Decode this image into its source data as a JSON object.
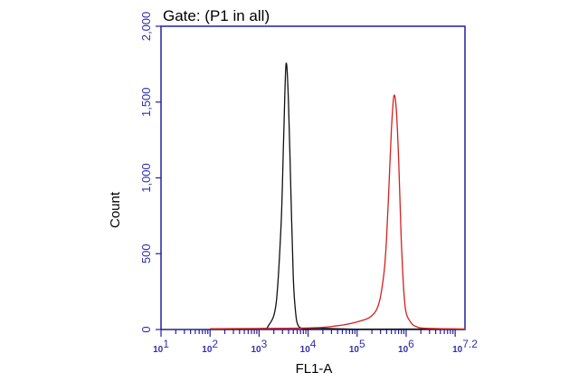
{
  "chart_data": {
    "type": "line",
    "title": "Gate: (P1 in all)",
    "xlabel": "FL1-A",
    "ylabel": "Count",
    "x_scale": "log",
    "xlim": [
      10,
      15848932
    ],
    "ylim": [
      0,
      2000
    ],
    "x_ticks": [
      {
        "base": "10",
        "exp": "1",
        "value": 10
      },
      {
        "base": "10",
        "exp": "2",
        "value": 100
      },
      {
        "base": "10",
        "exp": "3",
        "value": 1000
      },
      {
        "base": "10",
        "exp": "4",
        "value": 10000
      },
      {
        "base": "10",
        "exp": "5",
        "value": 100000
      },
      {
        "base": "10",
        "exp": "6",
        "value": 1000000
      },
      {
        "base": "10",
        "exp": "7.2",
        "value": 15848932
      }
    ],
    "y_ticks": [
      {
        "label": "0",
        "value": 0
      },
      {
        "label": "500",
        "value": 500
      },
      {
        "label": "1,000",
        "value": 1000
      },
      {
        "label": "1,500",
        "value": 1500
      },
      {
        "label": "2,000",
        "value": 2000
      }
    ],
    "grid": false,
    "series": [
      {
        "color": "#111111",
        "x": [
          100,
          1000,
          1585,
          2239,
          2818,
          3162,
          3548,
          3981,
          4467,
          5012,
          5623,
          6310,
          7943,
          10000,
          15849,
          100000,
          1000000,
          15848932
        ],
        "values": [
          2,
          5,
          30,
          180,
          700,
          1250,
          1750,
          1500,
          900,
          330,
          100,
          25,
          5,
          2,
          8,
          2,
          3,
          2
        ]
      },
      {
        "color": "#d42020",
        "x": [
          100,
          10000,
          39811,
          100000,
          199526,
          281838,
          354813,
          398107,
          446684,
          501187,
          562341,
          630957,
          707946,
          794328,
          891251,
          1000000,
          1258925,
          1584893,
          2511886,
          15848932
        ],
        "values": [
          5,
          10,
          25,
          50,
          90,
          180,
          380,
          600,
          950,
          1320,
          1540,
          1450,
          1100,
          600,
          260,
          110,
          45,
          20,
          8,
          3
        ]
      }
    ]
  }
}
